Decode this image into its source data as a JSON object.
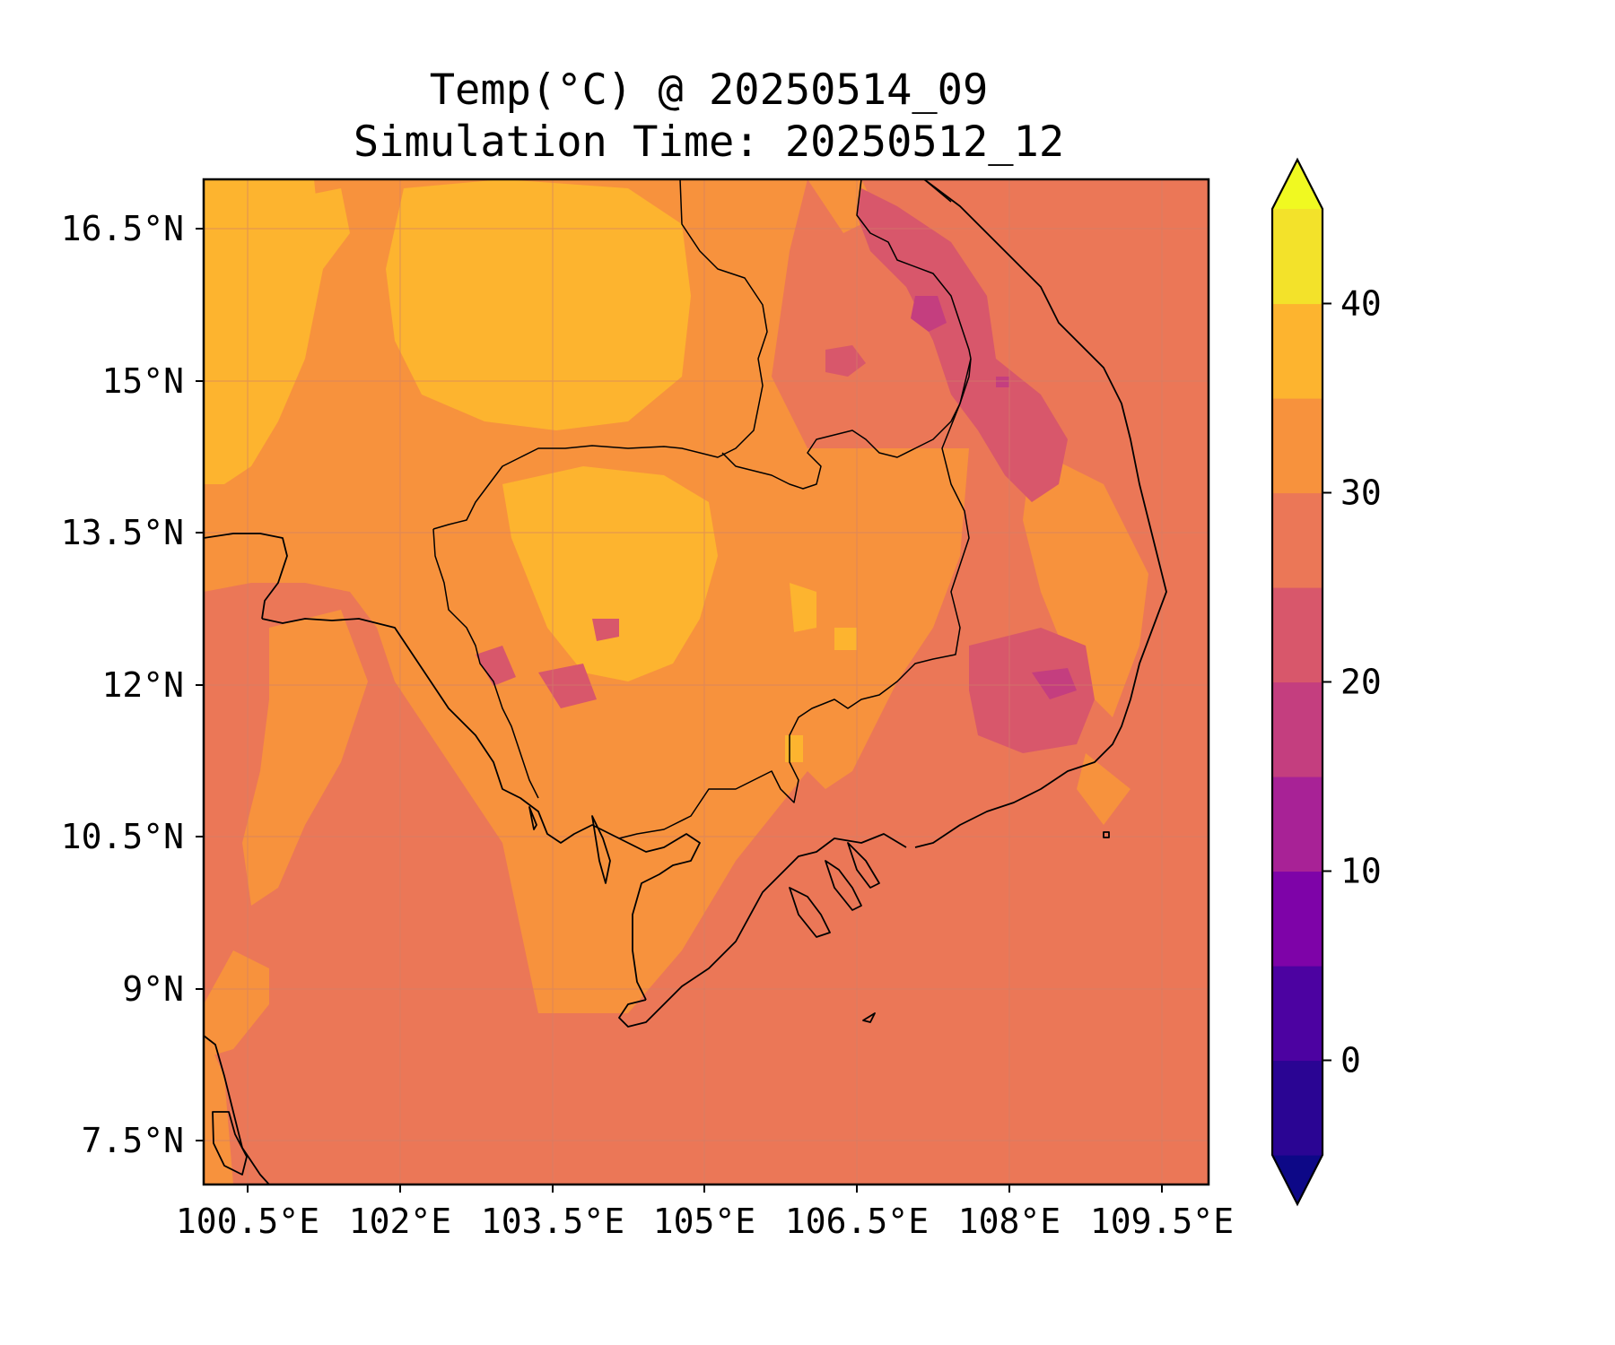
{
  "title": {
    "line1": "Temp(°C) @ 20250514_09",
    "line2": "Simulation Time: 20250512_12"
  },
  "map": {
    "lon_range": [
      100.0,
      109.9
    ],
    "lat_range": [
      7.0,
      16.9
    ],
    "lon_ticks": [
      "100.5°E",
      "102°E",
      "103.5°E",
      "105°E",
      "106.5°E",
      "108°E",
      "109.5°E"
    ],
    "lat_ticks": [
      "16.5°N",
      "15°N",
      "13.5°N",
      "12°N",
      "10.5°N",
      "9°N",
      "7.5°N"
    ],
    "background_value_range": [
      25,
      30
    ]
  },
  "colorbar": {
    "levels": [
      -5,
      0,
      5,
      10,
      15,
      20,
      25,
      30,
      35,
      40,
      45
    ],
    "tick_labels": [
      "0",
      "10",
      "20",
      "30",
      "40"
    ],
    "colors": [
      "#0d0887",
      "#2a0593",
      "#4c02a1",
      "#7e03a8",
      "#a82296",
      "#c43e7f",
      "#d8576b",
      "#eb7757",
      "#f7923d",
      "#fdb42f",
      "#f3e22a",
      "#f0f921"
    ],
    "extend": "both"
  }
}
